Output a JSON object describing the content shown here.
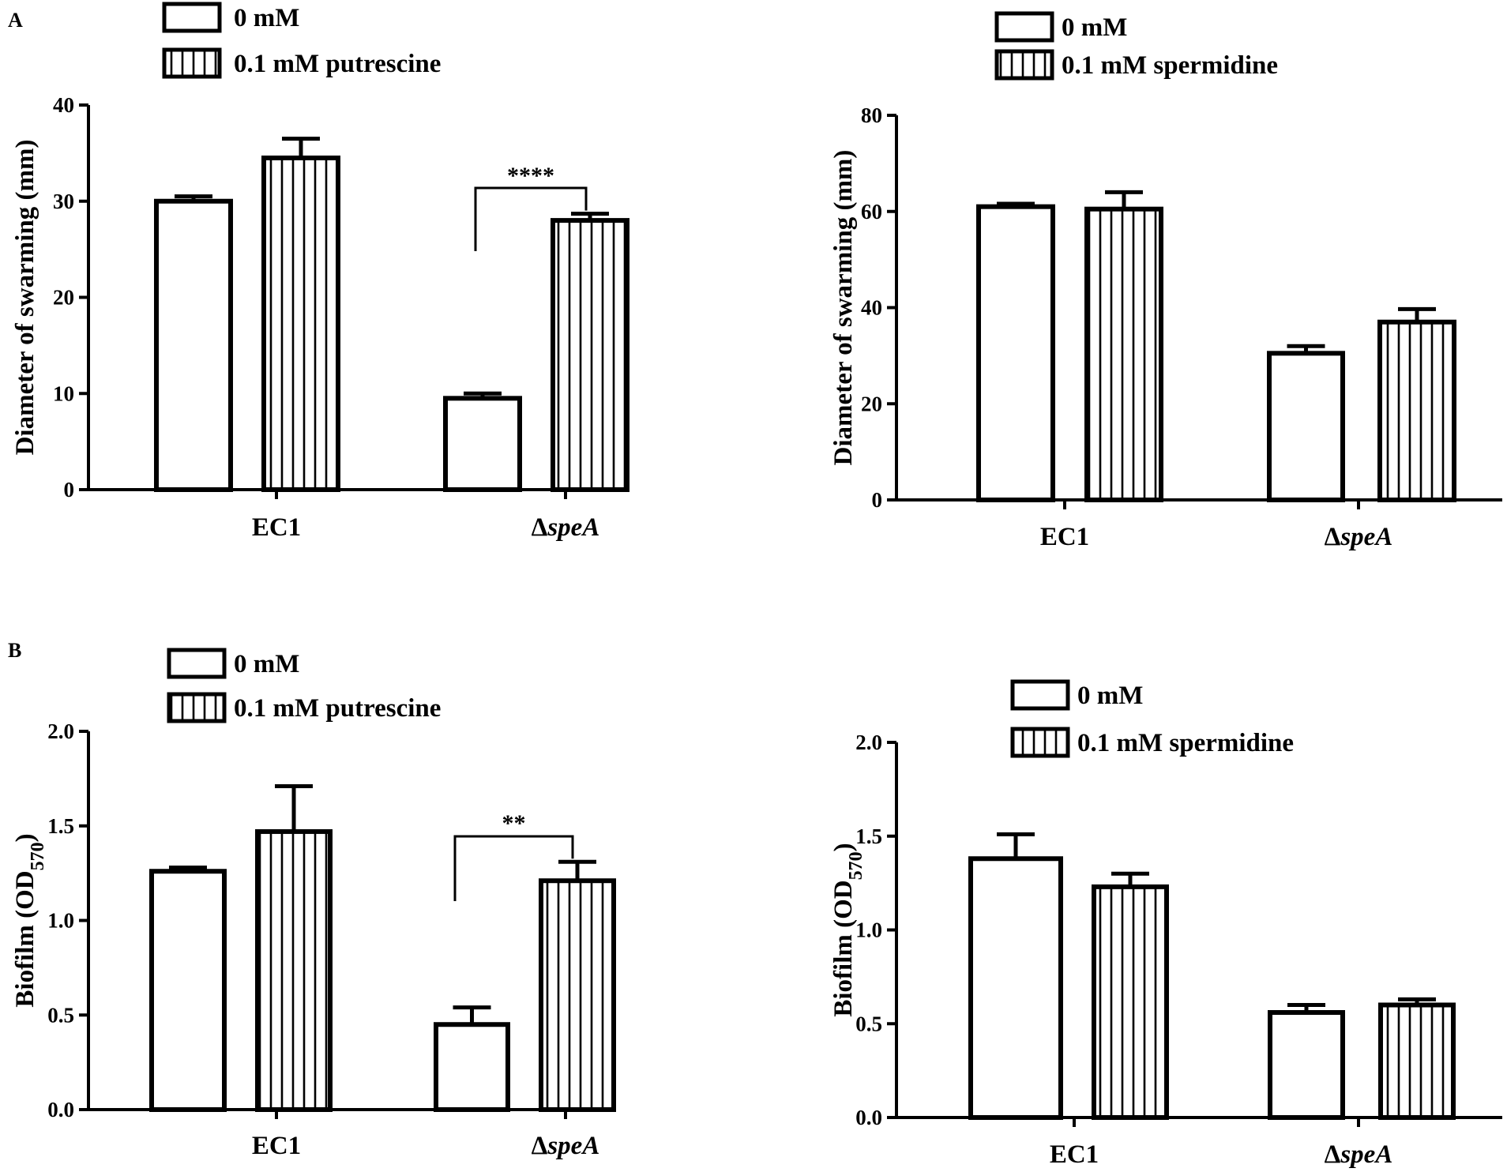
{
  "panel_labels": [
    "A",
    "B"
  ],
  "chart_data": [
    {
      "type": "bar",
      "panel": "A",
      "ylabel": "Diameter of swarming (mm)",
      "ylim": [
        0,
        40
      ],
      "yticks": [
        "0",
        "10",
        "20",
        "30",
        "40"
      ],
      "categories": [
        "EC1",
        "ΔspeA"
      ],
      "series": [
        {
          "name": "0 mM",
          "pattern": "open",
          "values": [
            30,
            9.5
          ],
          "errors": [
            0.5,
            0.5
          ]
        },
        {
          "name": "0.1 mM putrescine",
          "pattern": "vertical-stripes",
          "values": [
            34.5,
            28
          ],
          "errors": [
            2,
            0.7
          ]
        }
      ],
      "annotations": [
        {
          "text": "****",
          "category_index": 1
        }
      ]
    },
    {
      "type": "bar",
      "panel": "",
      "ylabel": "Diameter of swarming (mm)",
      "ylim": [
        0,
        80
      ],
      "yticks": [
        "0",
        "20",
        "40",
        "60",
        "80"
      ],
      "categories": [
        "EC1",
        "ΔspeA"
      ],
      "series": [
        {
          "name": "0 mM",
          "pattern": "open",
          "values": [
            61,
            30.5
          ],
          "errors": [
            0.6,
            1.5
          ]
        },
        {
          "name": "0.1 mM spermidine",
          "pattern": "vertical-stripes",
          "values": [
            60.5,
            37
          ],
          "errors": [
            3.5,
            2.7
          ]
        }
      ],
      "annotations": []
    },
    {
      "type": "bar",
      "panel": "B",
      "ylabel_main": "Biofilm (OD",
      "ylabel_sub": "570",
      "ylabel_end": ")",
      "ylim": [
        0,
        2.0
      ],
      "yticks": [
        "0.0",
        "0.5",
        "1.0",
        "1.5",
        "2.0"
      ],
      "categories": [
        "EC1",
        "ΔspeA"
      ],
      "series": [
        {
          "name": "0 mM",
          "pattern": "open",
          "values": [
            1.26,
            0.45
          ],
          "errors": [
            0.02,
            0.09
          ]
        },
        {
          "name": "0.1 mM putrescine",
          "pattern": "vertical-stripes",
          "values": [
            1.47,
            1.21
          ],
          "errors": [
            0.24,
            0.1
          ]
        }
      ],
      "annotations": [
        {
          "text": "**",
          "category_index": 1
        }
      ]
    },
    {
      "type": "bar",
      "panel": "",
      "ylabel_main": "Biofilm (OD",
      "ylabel_sub": "570",
      "ylabel_end": ")",
      "ylim": [
        0,
        2.0
      ],
      "yticks": [
        "0.0",
        "0.5",
        "1.0",
        "1.5",
        "2.0"
      ],
      "categories": [
        "EC1",
        "ΔspeA"
      ],
      "series": [
        {
          "name": "0 mM",
          "pattern": "open",
          "values": [
            1.38,
            0.56
          ],
          "errors": [
            0.13,
            0.04
          ]
        },
        {
          "name": "0.1 mM spermidine",
          "pattern": "vertical-stripes",
          "values": [
            1.23,
            0.6
          ],
          "errors": [
            0.07,
            0.03
          ]
        }
      ],
      "annotations": []
    }
  ]
}
